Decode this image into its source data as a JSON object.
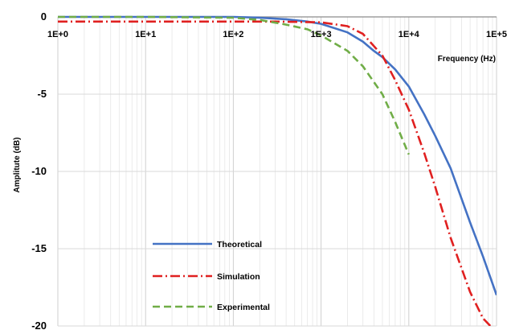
{
  "chart_data": {
    "type": "line",
    "xscale": "log",
    "xlim": [
      1,
      100000
    ],
    "ylim": [
      -20,
      0
    ],
    "grid": true,
    "legend_position": "bottom-left inside",
    "xlabel": "Frequency (Hz)",
    "ylabel": "Amplitute (dB)",
    "x_tick_labels": [
      "1E+0",
      "1E+1",
      "1E+2",
      "1E+3",
      "1E+4",
      "1E+5"
    ],
    "y_tick_labels": [
      "0",
      "-5",
      "-10",
      "-15",
      "-20"
    ],
    "series": [
      {
        "name": "Theoretical",
        "color": "#4472C4",
        "style": "solid",
        "x": [
          1,
          10,
          100,
          200,
          400,
          700,
          1000,
          2000,
          3000,
          4000,
          5000,
          7000,
          10000,
          15000,
          20000,
          30000,
          50000,
          70000,
          100000
        ],
        "y": [
          0,
          0,
          0,
          -0.05,
          -0.15,
          -0.3,
          -0.45,
          -1.0,
          -1.6,
          -2.2,
          -2.6,
          -3.4,
          -4.5,
          -6.3,
          -7.7,
          -9.8,
          -13.3,
          -15.5,
          -18.0
        ]
      },
      {
        "name": "Simulation",
        "color": "#E02020",
        "style": "dash-dot",
        "x": [
          1,
          10,
          100,
          300,
          1000,
          2000,
          3000,
          5000,
          7000,
          10000,
          15000,
          20000,
          30000,
          50000,
          70000,
          85000
        ],
        "y": [
          -0.3,
          -0.3,
          -0.3,
          -0.3,
          -0.35,
          -0.6,
          -1.1,
          -2.5,
          -4.1,
          -6.0,
          -8.8,
          -11.0,
          -14.3,
          -17.8,
          -19.5,
          -20.0
        ]
      },
      {
        "name": "Experimental",
        "color": "#70AD47",
        "style": "dashed",
        "x": [
          1,
          10,
          100,
          200,
          400,
          700,
          1000,
          2000,
          3000,
          5000,
          7000,
          10000
        ],
        "y": [
          0,
          0,
          -0.05,
          -0.2,
          -0.5,
          -0.8,
          -1.2,
          -2.2,
          -3.2,
          -5.0,
          -6.8,
          -8.9
        ]
      }
    ]
  }
}
